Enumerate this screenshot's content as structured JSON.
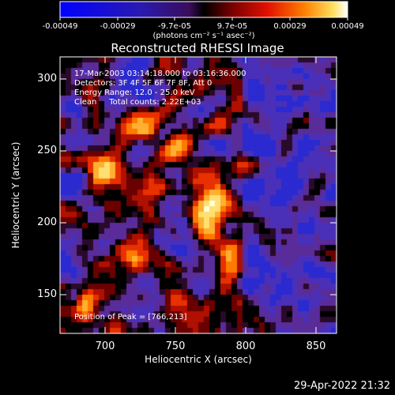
{
  "colorbar": {
    "ticks": [
      "-0.00049",
      "-0.00029",
      "-9.7e-05",
      "9.7e-05",
      "0.00029",
      "0.00049"
    ],
    "unit_text": "(photons cm⁻² s⁻¹ asec⁻²)"
  },
  "plot": {
    "title": "Reconstructed RHESSI Image",
    "info_lines": [
      "17-Mar-2003 03:14:18.000 to 03:16:36.000",
      "Detectors: 3F 4F 5F 6F 7F 8F, Att 0",
      "Energy Range: 12.0 - 25.0 keV",
      "Clean     Total counts: 2.22E+03"
    ],
    "peak_text": "Position of Peak = [766,213]",
    "xlabel": "Heliocentric X (arcsec)",
    "ylabel": "Heliocentric Y (arcsec)",
    "xticks": [
      "700",
      "750",
      "800",
      "850"
    ],
    "yticks": [
      "300",
      "250",
      "200",
      "150"
    ]
  },
  "footer": {
    "timestamp": "29-Apr-2022 21:32"
  },
  "colors": {
    "background": "#000000",
    "foreground": "#ffffff"
  }
}
